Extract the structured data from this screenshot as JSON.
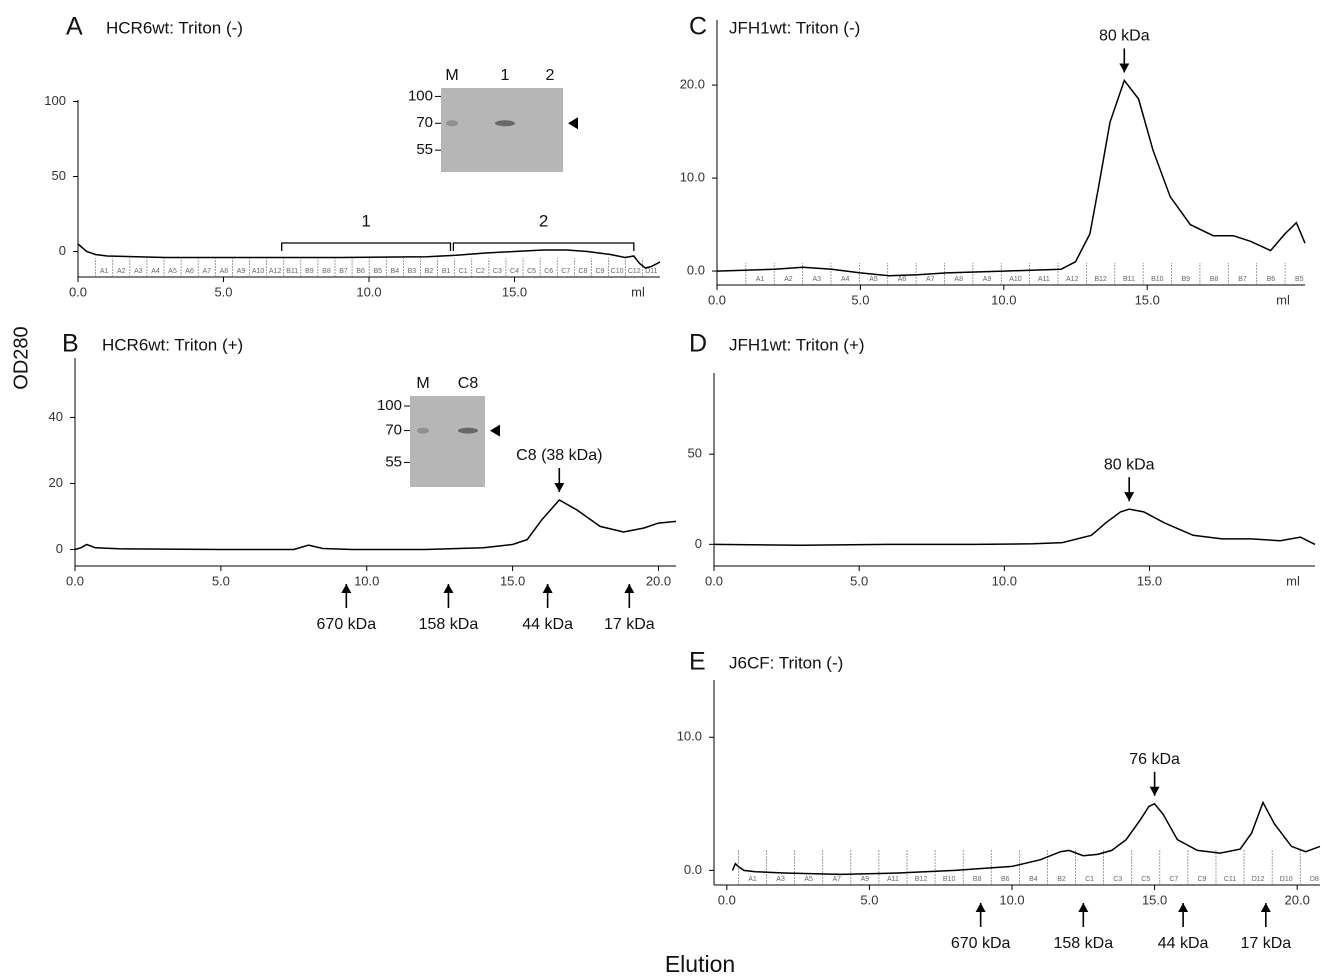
{
  "y_label": "OD280",
  "x_label": "Elution",
  "chart_data": [
    {
      "type": "line",
      "panel": "A",
      "title": "HCR6wt: Triton (-)",
      "color": "#000000",
      "x": [
        0,
        0.3,
        0.6,
        1,
        3,
        6,
        9,
        12,
        13,
        14,
        15,
        16,
        16.8,
        17.5,
        18.3,
        18.8,
        19.1,
        19.3,
        19.5,
        19.7,
        20
      ],
      "values": [
        5,
        0,
        -2,
        -3,
        -4,
        -4,
        -4,
        -3.5,
        -2.5,
        -1,
        0,
        1,
        1,
        0,
        -2,
        -4,
        -3,
        -8,
        -11,
        -10,
        -7
      ],
      "xlim": [
        0,
        20
      ],
      "ylim": [
        -17,
        101
      ],
      "xticks": [
        {
          "value": 0,
          "label": "0.0"
        },
        {
          "value": 5,
          "label": "5.0"
        },
        {
          "value": 10,
          "label": "10.0"
        },
        {
          "value": 15,
          "label": "15.0"
        }
      ],
      "yticks": [
        0,
        50,
        100
      ],
      "x_unit": "ml",
      "fractions": [
        "A1",
        "A2",
        "A3",
        "A4",
        "A5",
        "A6",
        "A7",
        "A8",
        "A9",
        "A10",
        "A12",
        "B11",
        "B9",
        "B8",
        "B7",
        "B6",
        "B5",
        "B4",
        "B3",
        "B2",
        "B1",
        "C1",
        "C2",
        "C3",
        "C4",
        "C5",
        "C6",
        "C7",
        "C8",
        "C9",
        "C10",
        "C12",
        "D11"
      ],
      "brackets": [
        {
          "text": "1",
          "x": [
            7.0,
            12.8
          ]
        },
        {
          "text": "2",
          "x": [
            12.9,
            19.1
          ]
        }
      ],
      "inset": {
        "lanes": [
          "M",
          "1",
          "2"
        ],
        "sizes": [
          "100",
          "70",
          "55"
        ]
      }
    },
    {
      "type": "line",
      "panel": "B",
      "title": "HCR6wt: Triton (+)",
      "color": "#000000",
      "x": [
        0,
        0.2,
        0.4,
        0.7,
        1.5,
        5,
        7.5,
        8,
        8.5,
        9.5,
        12,
        14,
        15,
        15.5,
        16,
        16.6,
        17.2,
        18,
        18.8,
        19.5,
        20,
        20.6
      ],
      "values": [
        0,
        0.5,
        1.5,
        0.5,
        0.2,
        0,
        0,
        1.3,
        0.3,
        0,
        0,
        0.5,
        1.5,
        3,
        9,
        15,
        12,
        7,
        5.3,
        6.5,
        8,
        8.5
      ],
      "xlim": [
        0,
        20.6
      ],
      "ylim": [
        -5,
        58
      ],
      "xticks": [
        {
          "value": 0,
          "label": "0.0"
        },
        {
          "value": 5,
          "label": "5.0"
        },
        {
          "value": 10,
          "label": "10.0"
        },
        {
          "value": 15,
          "label": "15.0"
        },
        {
          "value": 20,
          "label": "20.0"
        }
      ],
      "yticks": [
        0,
        20,
        40
      ],
      "annotations": [
        {
          "text": "C8 (38 kDa)",
          "x": 16.6
        }
      ],
      "markers": [
        {
          "text": "670 kDa",
          "x": 9.3
        },
        {
          "text": "158 kDa",
          "x": 12.8
        },
        {
          "text": "44 kDa",
          "x": 16.2
        },
        {
          "text": "17 kDa",
          "x": 19
        }
      ],
      "inset": {
        "lanes": [
          "M",
          "C8"
        ],
        "sizes": [
          "100",
          "70",
          "55"
        ]
      }
    },
    {
      "type": "line",
      "panel": "C",
      "title": "JFH1wt: Triton (-)",
      "color": "#000000",
      "x": [
        0,
        2,
        3,
        4,
        5,
        6,
        7,
        8,
        10,
        12,
        12.5,
        13,
        13.3,
        13.7,
        14.2,
        14.7,
        15.2,
        15.8,
        16.5,
        17.3,
        18,
        18.6,
        19.3,
        19.8,
        20.2,
        20.5
      ],
      "values": [
        0,
        0.2,
        0.4,
        0.2,
        -0.2,
        -0.5,
        -0.4,
        -0.2,
        0,
        0.2,
        1,
        4,
        9,
        16,
        20.5,
        18.5,
        13,
        8,
        5,
        3.8,
        3.8,
        3.2,
        2.2,
        4,
        5.2,
        3
      ],
      "xlim": [
        0,
        20.5
      ],
      "ylim": [
        -1.5,
        27
      ],
      "xticks": [
        {
          "value": 0,
          "label": "0.0"
        },
        {
          "value": 5,
          "label": "5.0"
        },
        {
          "value": 10,
          "label": "10.0"
        },
        {
          "value": 15,
          "label": "15.0"
        }
      ],
      "yticks": [
        {
          "value": 0,
          "label": "0.0"
        },
        {
          "value": 10,
          "label": "10.0"
        },
        {
          "value": 20,
          "label": "20.0"
        }
      ],
      "x_unit": "ml",
      "fractions": [
        "A1",
        "A2",
        "A3",
        "A4",
        "A5",
        "A6",
        "A7",
        "A8",
        "A9",
        "A10",
        "A11",
        "A12",
        "B12",
        "B11",
        "B10",
        "B9",
        "B8",
        "B7",
        "B6",
        "B5"
      ],
      "annotations": [
        {
          "text": "80 kDa",
          "x": 14.2
        }
      ]
    },
    {
      "type": "line",
      "panel": "D",
      "title": "JFH1wt: Triton (+)",
      "color": "#000000",
      "x": [
        0,
        3,
        6,
        9,
        11,
        12,
        13,
        13.5,
        14,
        14.3,
        14.8,
        15.5,
        16.5,
        17.5,
        18.5,
        19.5,
        20.2,
        20.7
      ],
      "values": [
        0,
        -0.5,
        0,
        0,
        0.3,
        1,
        5,
        12,
        18,
        19.5,
        18,
        12,
        5,
        3,
        3,
        2,
        4,
        0
      ],
      "xlim": [
        0,
        20.7
      ],
      "ylim": [
        -12,
        95
      ],
      "xticks": [
        {
          "value": 0,
          "label": "0.0"
        },
        {
          "value": 5,
          "label": "5.0"
        },
        {
          "value": 10,
          "label": "10.0"
        },
        {
          "value": 15,
          "label": "15.0"
        }
      ],
      "yticks": [
        0,
        50
      ],
      "x_unit": "ml",
      "annotations": [
        {
          "text": "80 kDa",
          "x": 14.3
        }
      ]
    },
    {
      "type": "line",
      "panel": "E",
      "title": "J6CF: Triton (-)",
      "color": "#000000",
      "x": [
        0.2,
        0.3,
        0.4,
        0.6,
        1,
        2,
        4,
        6,
        8,
        10,
        11,
        11.7,
        12,
        12.5,
        13,
        13.5,
        14,
        14.5,
        14.8,
        15,
        15.3,
        15.8,
        16.5,
        17.3,
        18,
        18.4,
        18.8,
        19.2,
        19.8,
        20.3,
        20.8
      ],
      "values": [
        0,
        0.5,
        0.3,
        0,
        -0.1,
        -0.2,
        -0.3,
        -0.2,
        0,
        0.3,
        0.8,
        1.4,
        1.5,
        1.1,
        1.2,
        1.5,
        2.3,
        3.8,
        4.8,
        5,
        4.2,
        2.3,
        1.5,
        1.3,
        1.6,
        2.8,
        5.1,
        3.5,
        1.8,
        1.4,
        1.8
      ],
      "xlim": [
        -0.45,
        20.8
      ],
      "ylim": [
        -1.1,
        14.3
      ],
      "xticks": [
        {
          "value": 0,
          "label": "0.0"
        },
        {
          "value": 5,
          "label": "5.0"
        },
        {
          "value": 10,
          "label": "10.0"
        },
        {
          "value": 15,
          "label": "15.0"
        },
        {
          "value": 20,
          "label": "20.0"
        }
      ],
      "yticks": [
        {
          "value": 0,
          "label": "0.0"
        },
        {
          "value": 10,
          "label": "10.0"
        }
      ],
      "fractions": [
        "A1",
        "A3",
        "A5",
        "A7",
        "A9",
        "A11",
        "B12",
        "B10",
        "B8",
        "B6",
        "B4",
        "B2",
        "C1",
        "C3",
        "C5",
        "C7",
        "C9",
        "C11",
        "D12",
        "D10",
        "D8"
      ],
      "annotations": [
        {
          "text": "76 kDa",
          "x": 15
        }
      ],
      "markers": [
        {
          "text": "670 kDa",
          "x": 8.9
        },
        {
          "text": "158 kDa",
          "x": 12.5
        },
        {
          "text": "44 kDa",
          "x": 16
        },
        {
          "text": "17 kDa",
          "x": 18.9
        }
      ]
    }
  ]
}
